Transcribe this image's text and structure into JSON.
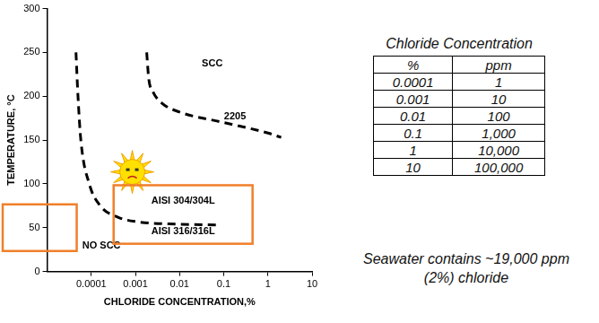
{
  "chart_data": {
    "type": "line",
    "x_label": "CHLORIDE CONCENTRATION,%",
    "y_label": "TEMPERATURE, °C",
    "log": "x",
    "grid": false,
    "xlim": [
      1e-05,
      10
    ],
    "xticks": [
      0.0001,
      0.001,
      0.01,
      0.1,
      1,
      10
    ],
    "ylim": [
      0,
      300
    ],
    "yticks": [
      0,
      50,
      100,
      150,
      200,
      250,
      300
    ],
    "series": [
      {
        "color": "#000000",
        "line_style": "dashed",
        "x": [
          4.5e-05,
          5e-05,
          5.8e-05,
          9e-05,
          0.00016,
          0.0004,
          0.001,
          0.01,
          0.08
        ],
        "values": [
          250,
          200,
          150,
          100,
          75,
          62,
          57,
          54,
          53
        ]
      },
      {
        "color": "#000000",
        "line_style": "dashed",
        "x": [
          0.0018,
          0.002,
          0.0025,
          0.004,
          0.01,
          0.1,
          1,
          2
        ],
        "values": [
          250,
          220,
          205,
          192,
          182,
          170,
          158,
          153
        ]
      }
    ],
    "annotations": [
      {
        "text": "SCC",
        "x": 0.055,
        "y": 237
      },
      {
        "text": "NO SCC",
        "x": 0.00017,
        "y": 29
      },
      {
        "text": "2205",
        "x": 0.18,
        "y": 177
      },
      {
        "text": "AISI 304/304L",
        "x": 0.012,
        "y": 80
      },
      {
        "text": "AISI 316/316L",
        "x": 0.012,
        "y": 46
      }
    ]
  },
  "table": {
    "title": "Chloride Concentration",
    "header": [
      "%",
      "ppm"
    ],
    "rows": [
      [
        "0.0001",
        "1"
      ],
      [
        "0.001",
        "10"
      ],
      [
        "0.01",
        "100"
      ],
      [
        "0.1",
        "1,000"
      ],
      [
        "1",
        "10,000"
      ],
      [
        "10",
        "100,000"
      ]
    ]
  },
  "note": [
    "Seawater contains ~19,000 ppm",
    "(2%) chloride"
  ]
}
